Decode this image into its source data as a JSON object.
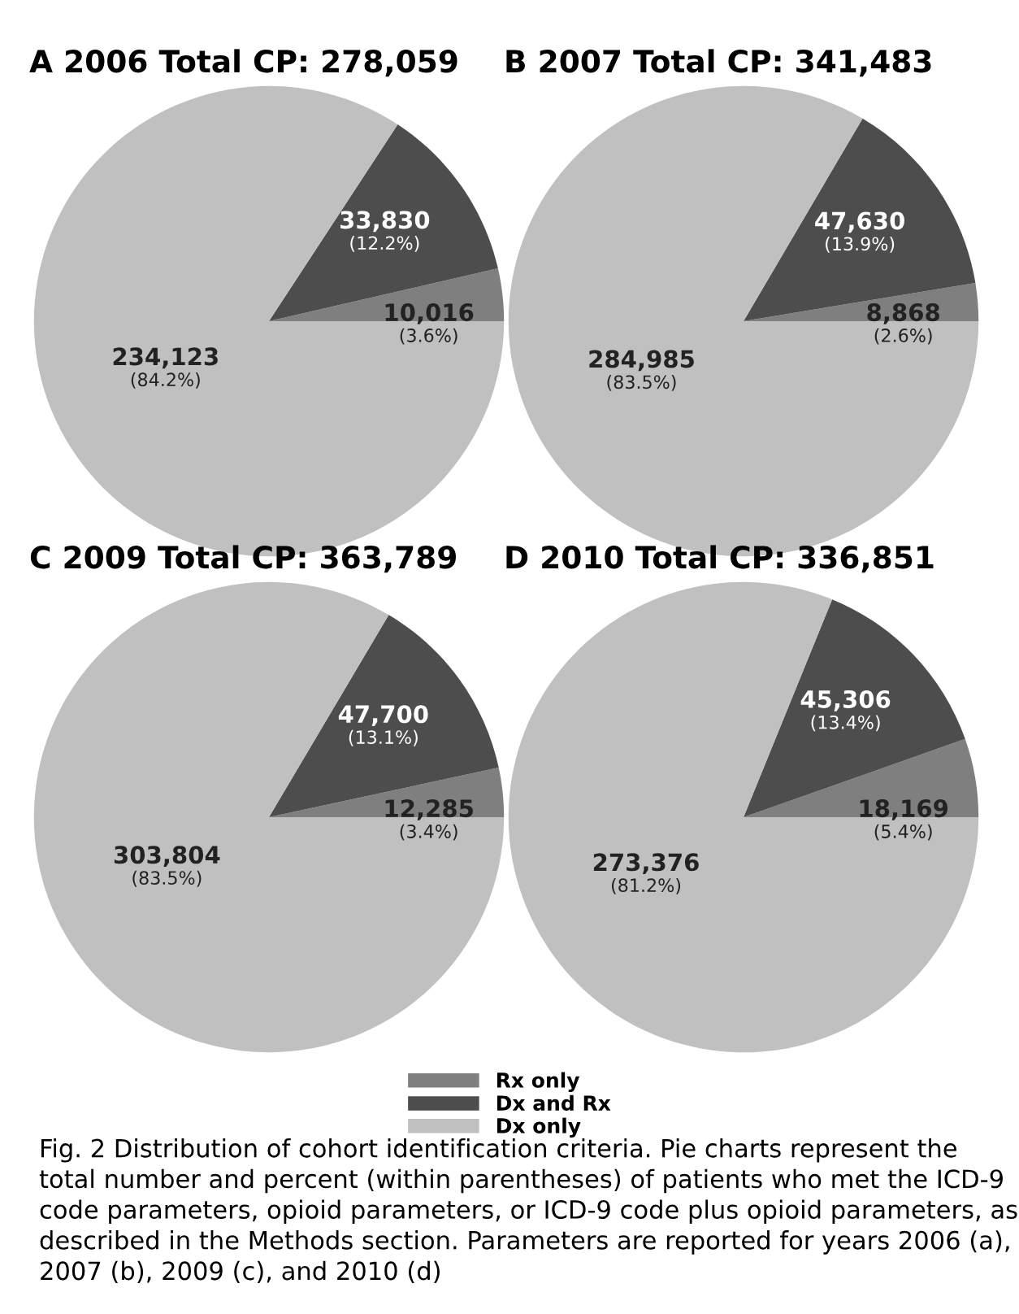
{
  "chart_data": [
    {
      "type": "pie",
      "title": "A 2006 Total CP: 278,059",
      "categories": [
        "Rx only",
        "Dx and Rx",
        "Dx only"
      ],
      "legend": "bottom",
      "values": [
        10016,
        33830,
        234123
      ],
      "colors": [
        "#7f7f7f",
        "#4d4d4d",
        "#c0c0c0"
      ],
      "value_labels": [
        "10,016\n(3.6%)",
        "33,830\n(12.2%)",
        "234,123\n(84.2%)"
      ]
    },
    {
      "type": "pie",
      "title": "B 2007 Total CP: 341,483",
      "categories": [
        null,
        null,
        null
      ],
      "values": [
        8868,
        47630,
        284985
      ],
      "colors": [
        "#7f7f7f",
        "#4d4d4d",
        "#c0c0c0"
      ],
      "value_labels": [
        "8,868\n(2.6%)",
        "47,630\n(13.9%)",
        "284,985\n(83.5%)"
      ]
    },
    {
      "type": "pie",
      "title": "C 2009 Total CP: 363,789",
      "categories": [
        null,
        null,
        null
      ],
      "values": [
        12285,
        47700,
        303804
      ],
      "colors": [
        "#7f7f7f",
        "#4d4d4d",
        "#c0c0c0"
      ],
      "value_labels": [
        "12,285\n(3.4%)",
        "47,700\n(13.1%)",
        "303,804\n(83.5%)"
      ]
    },
    {
      "type": "pie",
      "title": "D 2010 Total CP: 336,851",
      "categories": [
        null,
        null,
        null
      ],
      "values": [
        18169,
        45306,
        273376
      ],
      "colors": [
        "#7f7f7f",
        "#4d4d4d",
        "#c0c0c0"
      ],
      "value_labels": [
        "18,169\n(5.4%)",
        "45,306\n(13.4%)",
        "273,376\n(81.2%)"
      ],
      "annotations": [
        "Fig. 2 Distribution of cohort identification criteria. Pie charts represent the total number and percent (within parentheses) of patients who met the ICD-9 code parameters, opioid parameters, or ICD-9 code plus opioid parameters, as described in the Methods section. Parameters are reported for years 2006 (a), 2007 (b), 2009 (c), and 2010 (d)"
      ]
    }
  ]
}
